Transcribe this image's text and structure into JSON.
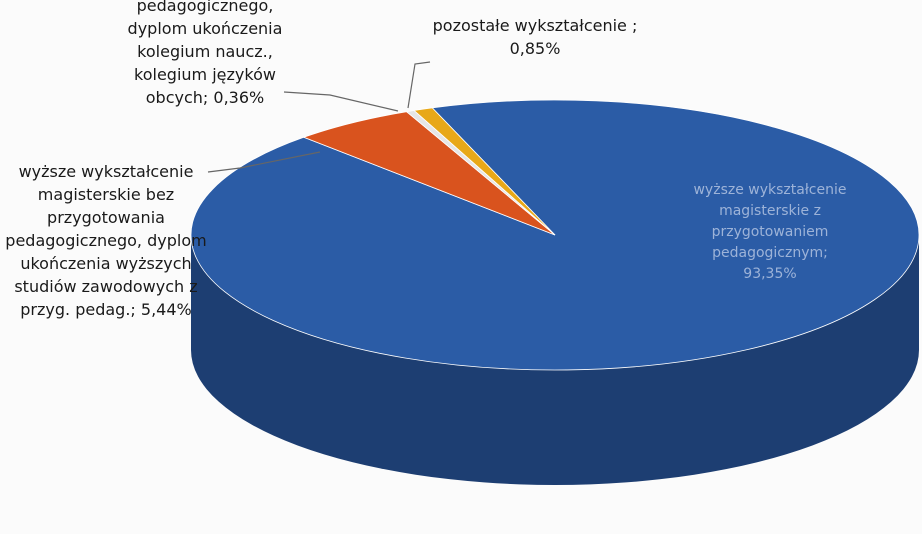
{
  "chart_data": {
    "type": "pie",
    "categories": [
      "wyższe wykształcenie magisterskie z przygotowaniem pedagogicznym;",
      "wyższe wykształcenie magisterskie bez przygotowania pedagogicznego, dyplom ukończenia wyższych studiów zawodowych z przyg. pedag.;",
      "pedagogicznego, dyplom ukończenia kolegium naucz., kolegium języków obcych;",
      "pozostałe wykształcenie ;"
    ],
    "values": [
      93.35,
      5.44,
      0.36,
      0.85
    ],
    "value_labels": [
      "93,35%",
      "5,44%",
      "0,36%",
      "0,85%"
    ],
    "colors": [
      "#2b5ca6",
      "#d9531e",
      "#e6e6e6",
      "#e8a818"
    ]
  }
}
